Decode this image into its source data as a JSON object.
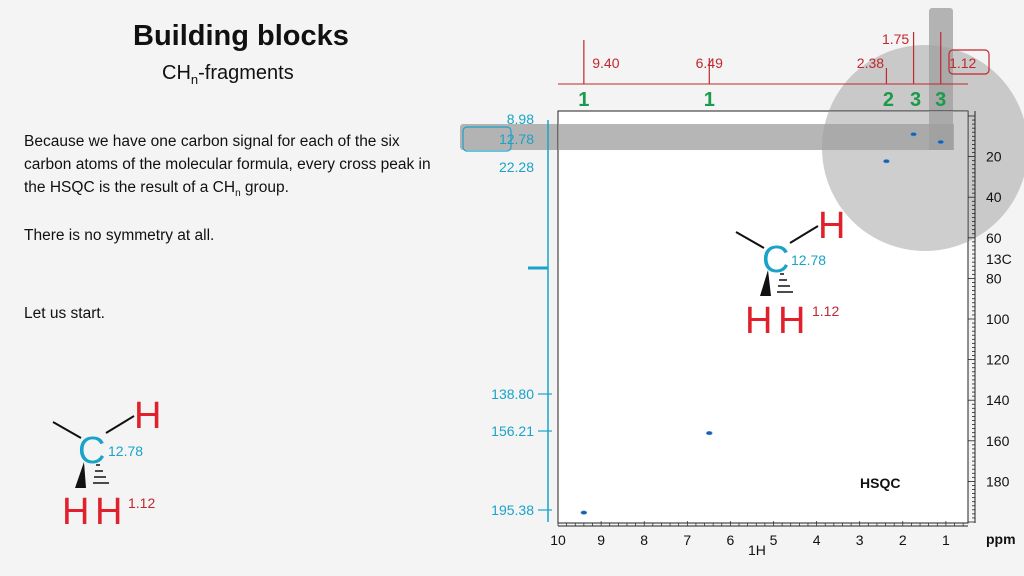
{
  "slide": {
    "title": "Building blocks",
    "subtitle_main": "CH",
    "subtitle_sub": "n",
    "subtitle_rest": "-fragments",
    "paragraph1_a": "Because we have one carbon signal for each of the six carbon atoms of the molecular formula, every cross peak in the HSQC is the result of a CH",
    "paragraph1_sub": "n",
    "paragraph1_b": " group.",
    "paragraph2": "There is no symmetry at all.",
    "paragraph3": "Let us start."
  },
  "fragment_large": {
    "h_top": "H",
    "carbon": "C",
    "carbon_shift": "12.78",
    "h_bottom_1": "H",
    "h_bottom_2": "H",
    "h_shift": "1.12"
  },
  "fragment_small": {
    "h_top": "H",
    "carbon": "C",
    "carbon_shift": "12.78",
    "h_bottom_1": "H",
    "h_bottom_2": "H",
    "h_shift": "1.12"
  },
  "colors": {
    "proton": "#e0202a",
    "carbon": "#1aa3c8",
    "integral": "#1a9a4a",
    "highlight": "#9e9e9e"
  },
  "chart_data": {
    "type": "scatter",
    "title": "HSQC",
    "xlabel": "1H",
    "ylabel": "13C",
    "x_unit": "ppm",
    "xlim": [
      10,
      0.5
    ],
    "ylim": [
      0,
      200
    ],
    "x_ticks": [
      "10",
      "9",
      "8",
      "7",
      "6",
      "5",
      "4",
      "3",
      "2",
      "1"
    ],
    "y_ticks": [
      "20",
      "40",
      "60",
      "80",
      "100",
      "120",
      "140",
      "160",
      "180"
    ],
    "proton_peaks": [
      "9.40",
      "6.49",
      "2.38",
      "1.75",
      "1.12"
    ],
    "proton_peak_values": [
      9.4,
      6.49,
      2.38,
      1.75,
      1.12
    ],
    "integrals": [
      "1",
      "1",
      "2",
      "3",
      "3"
    ],
    "integral_positions": [
      9.4,
      6.49,
      2.38,
      1.75,
      1.12
    ],
    "carbon_labels": [
      "8.98",
      "12.78",
      "22.28",
      "138.80",
      "156.21",
      "195.38"
    ],
    "carbon_label_values": [
      8.98,
      12.78,
      22.28,
      138.8,
      156.21,
      195.38
    ],
    "cross_peaks": [
      {
        "x": 9.4,
        "y": 195.38
      },
      {
        "x": 6.49,
        "y": 156.21
      },
      {
        "x": 2.38,
        "y": 22.28
      },
      {
        "x": 1.75,
        "y": 8.98
      },
      {
        "x": 1.12,
        "y": 12.78
      }
    ],
    "highlight_carbon": "12.78",
    "highlight_proton": "1.12"
  }
}
